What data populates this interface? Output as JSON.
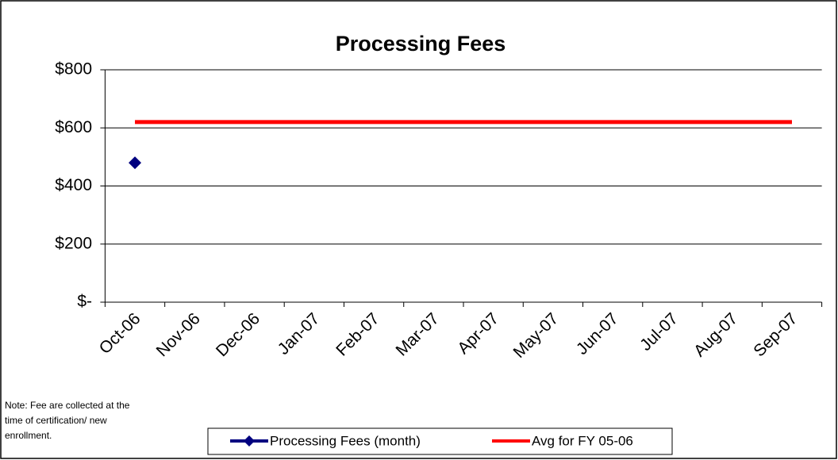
{
  "chart_data": {
    "type": "line",
    "title": "Processing Fees",
    "categories": [
      "Oct-06",
      "Nov-06",
      "Dec-06",
      "Jan-07",
      "Feb-07",
      "Mar-07",
      "Apr-07",
      "May-07",
      "Jun-07",
      "Jul-07",
      "Aug-07",
      "Sep-07"
    ],
    "series": [
      {
        "name": "Processing Fees (month)",
        "color": "#000080",
        "marker": "diamond",
        "values": [
          480,
          null,
          null,
          null,
          null,
          null,
          null,
          null,
          null,
          null,
          null,
          null
        ]
      },
      {
        "name": "Avg for FY 05-06",
        "color": "#ff0000",
        "values": [
          620,
          620,
          620,
          620,
          620,
          620,
          620,
          620,
          620,
          620,
          620,
          620
        ]
      }
    ],
    "ylim": [
      0,
      800
    ],
    "yticks": [
      {
        "value": 0,
        "label": "$-"
      },
      {
        "value": 200,
        "label": "$200"
      },
      {
        "value": 400,
        "label": "$400"
      },
      {
        "value": 600,
        "label": "$600"
      },
      {
        "value": 800,
        "label": "$800"
      }
    ],
    "grid": true,
    "legend": "bottom",
    "note": [
      "Note:  Fee are collected at the",
      "time of certification/ new",
      "enrollment."
    ]
  }
}
